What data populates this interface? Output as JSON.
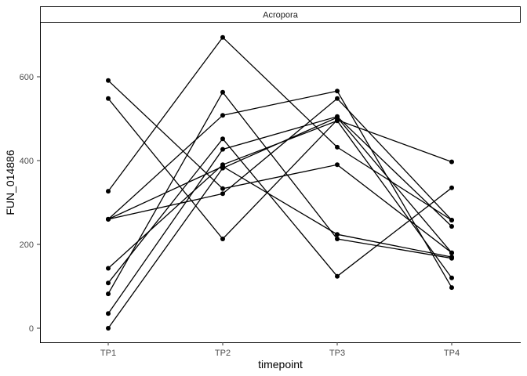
{
  "chart_data": {
    "type": "line",
    "facet_label": "Acropora",
    "xlabel": "timepoint",
    "ylabel": "FUN_014886",
    "categories": [
      "TP1",
      "TP2",
      "TP3",
      "TP4"
    ],
    "ylim": [
      -20,
      730
    ],
    "yticks": [
      0,
      200,
      400,
      600
    ],
    "grid": false,
    "colors": {
      "line": "#000000",
      "axis": "#000000",
      "text": "#4d4d4d"
    },
    "series": [
      {
        "values": [
          0,
          382,
          503,
          180
        ]
      },
      {
        "values": [
          35,
          427,
          505,
          243
        ]
      },
      {
        "values": [
          82,
          563,
          213,
          167
        ]
      },
      {
        "values": [
          108,
          452,
          124,
          335
        ]
      },
      {
        "values": [
          143,
          390,
          495,
          120
        ]
      },
      {
        "values": [
          260,
          508,
          566,
          97
        ]
      },
      {
        "values": [
          260,
          321,
          548,
          258
        ]
      },
      {
        "values": [
          327,
          694,
          432,
          258
        ]
      },
      {
        "values": [
          548,
          213,
          497,
          397
        ]
      },
      {
        "values": [
          591,
          333,
          390,
          180
        ]
      },
      {
        "values": [
          260,
          386,
          224,
          170
        ]
      }
    ]
  }
}
